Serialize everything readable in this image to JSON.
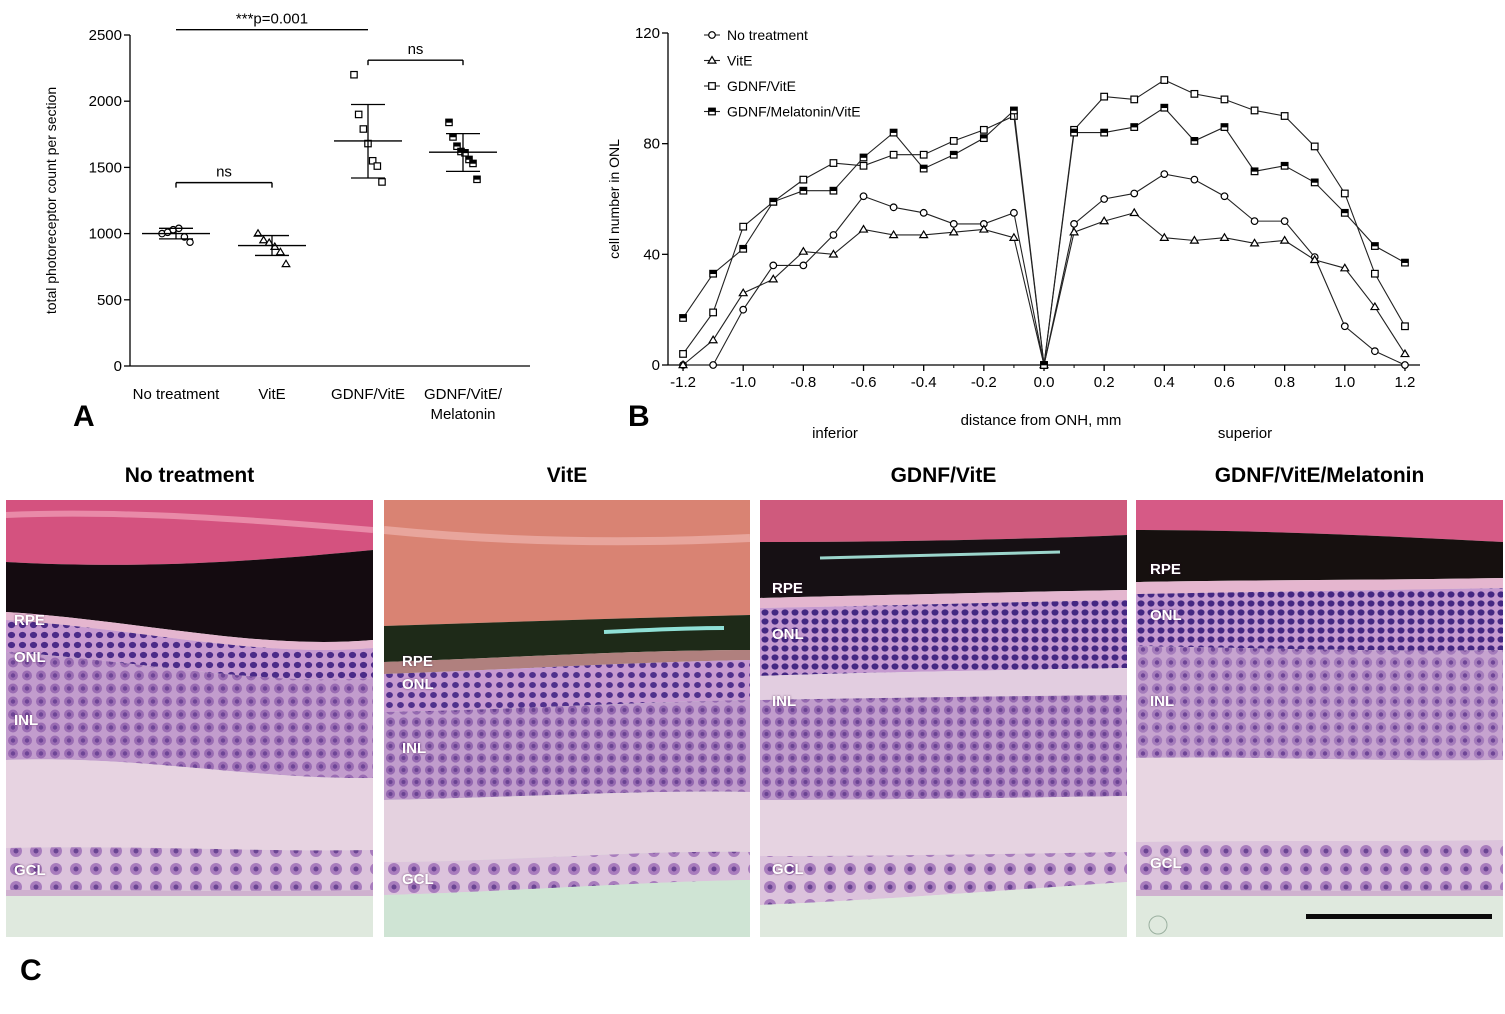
{
  "panel_letters": [
    "A",
    "B",
    "C"
  ],
  "chart_data": [
    {
      "type": "scatter",
      "panel": "A",
      "ylabel": "total photoreceptor count per section",
      "xlabel": "",
      "ylim": [
        0,
        2500
      ],
      "yticks": [
        0,
        500,
        1000,
        1500,
        2000,
        2500
      ],
      "categories": [
        "No treatment",
        "VitE",
        "GDNF/VitE",
        "GDNF/VitE/\nMelatonin"
      ],
      "groups": [
        {
          "marker": "circle",
          "points": [
            1000,
            1010,
            1030,
            1040,
            975,
            935
          ],
          "mean": 1000,
          "sd_low": 960,
          "sd_high": 1040
        },
        {
          "marker": "triangle",
          "points": [
            1000,
            950,
            930,
            900,
            860,
            770
          ],
          "mean": 910,
          "sd_low": 835,
          "sd_high": 985
        },
        {
          "marker": "square",
          "points": [
            2200,
            1900,
            1790,
            1680,
            1550,
            1510,
            1390
          ],
          "mean": 1700,
          "sd_low": 1420,
          "sd_high": 1975
        },
        {
          "marker": "filled-square",
          "points": [
            1840,
            1730,
            1660,
            1620,
            1610,
            1560,
            1530,
            1410
          ],
          "mean": 1615,
          "sd_low": 1470,
          "sd_high": 1755
        }
      ],
      "annotations": [
        {
          "text": "***p=0.001",
          "from": 0,
          "to": 2,
          "y": 2540
        },
        {
          "text": "ns",
          "from": 2,
          "to": 3,
          "y": 2310
        },
        {
          "text": "ns",
          "from": 0,
          "to": 1,
          "y": 1385
        }
      ]
    },
    {
      "type": "line",
      "panel": "B",
      "ylabel": "cell number in ONL",
      "xlabel": "distance from ONH, mm",
      "side_labels": [
        "inferior",
        "superior"
      ],
      "ylim": [
        0,
        120
      ],
      "xlim": [
        -1.25,
        1.25
      ],
      "yticks": [
        0,
        40,
        80,
        120
      ],
      "xticks": [
        "-1.2",
        "-1.0",
        "-0.8",
        "-0.6",
        "-0.4",
        "-0.2",
        "0.0",
        "0.2",
        "0.4",
        "0.6",
        "0.8",
        "1.0",
        "1.2"
      ],
      "x": [
        -1.2,
        -1.1,
        -1.0,
        -0.9,
        -0.8,
        -0.7,
        -0.6,
        -0.5,
        -0.4,
        -0.3,
        -0.2,
        -0.1,
        0.0,
        0.1,
        0.2,
        0.3,
        0.4,
        0.5,
        0.6,
        0.7,
        0.8,
        0.9,
        1.0,
        1.1,
        1.2
      ],
      "legend_position": "top-left",
      "series": [
        {
          "name": "No treatment",
          "marker": "circle",
          "values": [
            0,
            0,
            20,
            36,
            36,
            47,
            61,
            57,
            55,
            51,
            51,
            55,
            0,
            51,
            60,
            62,
            69,
            67,
            61,
            52,
            52,
            39,
            14,
            5,
            0
          ]
        },
        {
          "name": "VitE",
          "marker": "triangle",
          "values": [
            0,
            9,
            26,
            31,
            41,
            40,
            49,
            47,
            47,
            48,
            49,
            46,
            0,
            48,
            52,
            55,
            46,
            45,
            46,
            44,
            45,
            38,
            35,
            21,
            4
          ]
        },
        {
          "name": "GDNF/VitE",
          "marker": "square",
          "values": [
            4,
            19,
            50,
            59,
            67,
            73,
            72,
            76,
            76,
            81,
            85,
            90,
            0,
            85,
            97,
            96,
            103,
            98,
            96,
            92,
            90,
            79,
            62,
            33,
            14
          ]
        },
        {
          "name": "GDNF/Melatonin/VitE",
          "marker": "filled-square",
          "values": [
            17,
            33,
            42,
            59,
            63,
            63,
            75,
            84,
            71,
            76,
            82,
            92,
            0,
            84,
            84,
            86,
            93,
            81,
            86,
            70,
            72,
            66,
            55,
            43,
            37
          ]
        }
      ]
    }
  ],
  "histology": {
    "panels": [
      {
        "title": "No treatment",
        "labels": [
          "RPE",
          "ONL",
          "INL",
          "GCL"
        ]
      },
      {
        "title": "VitE",
        "labels": [
          "RPE",
          "ONL",
          "INL",
          "GCL"
        ]
      },
      {
        "title": "GDNF/VitE",
        "labels": [
          "RPE",
          "ONL",
          "INL",
          "GCL"
        ]
      },
      {
        "title": "GDNF/VitE/Melatonin",
        "labels": [
          "RPE",
          "ONL",
          "INL",
          "GCL"
        ]
      }
    ],
    "colors": {
      "sclera": "#d2557e",
      "pigment": "#140c10",
      "onl_nuclei": "#4a2a86",
      "inl_tissue": "#b98bc4",
      "ipl": "#e6d2df",
      "background": "#dde8dc"
    }
  },
  "colors": {
    "axis": "#000000",
    "marker_fill": "#ffffff"
  }
}
